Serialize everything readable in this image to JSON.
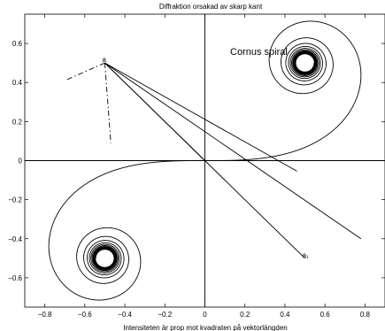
{
  "chart_data": {
    "type": "line",
    "title": "Diffraktion  orsakad av skarp kant",
    "xlabel": "Intensiteten är prop mot kvadraten på vektorlängden",
    "ylabel": "",
    "annotation": "Cornus spiral",
    "xlim": [
      -0.9,
      0.9
    ],
    "ylim": [
      -0.75,
      0.75
    ],
    "x_ticks": [
      -0.8,
      -0.6,
      -0.4,
      -0.2,
      0,
      0.2,
      0.4,
      0.6,
      0.8
    ],
    "y_ticks": [
      -0.6,
      -0.4,
      -0.2,
      0,
      0.2,
      0.4,
      0.6
    ],
    "x_tick_labels": [
      "−0.8",
      "−0.6",
      "−0.4",
      "−0.2",
      "0",
      "0.2",
      "0.4",
      "0.6",
      "0.8"
    ],
    "y_tick_labels": [
      "−0.6",
      "−0.4",
      "−0.2",
      "0",
      "0.2",
      "0.4",
      "0.6"
    ],
    "grid": false,
    "series": [
      {
        "kind": "spiral",
        "t_range": [
          -7,
          7
        ],
        "style": "solid",
        "color": "#000000"
      }
    ],
    "segments": [
      {
        "from": [
          -0.5,
          0.5
        ],
        "to": [
          0.0,
          0.0
        ],
        "style": "solid"
      },
      {
        "from": [
          -0.5,
          0.5
        ],
        "to": [
          0.5,
          -0.5
        ],
        "style": "solid"
      },
      {
        "from": [
          -0.5,
          0.5
        ],
        "to": [
          0.46,
          -0.054
        ],
        "style": "solid"
      },
      {
        "from": [
          -0.5,
          0.5
        ],
        "to": [
          0.78,
          -0.4
        ],
        "style": "solid"
      },
      {
        "from": [
          -0.5,
          0.5
        ],
        "to": [
          -0.7,
          0.41
        ],
        "style": "dashdot"
      },
      {
        "from": [
          -0.5,
          0.5
        ],
        "to": [
          -0.47,
          0.09
        ],
        "style": "dashdot"
      }
    ],
    "point_labels": [
      {
        "text": "a",
        "x": -0.5,
        "y": 0.5
      },
      {
        "text": "a₁",
        "x": 0.5,
        "y": -0.5
      }
    ]
  }
}
